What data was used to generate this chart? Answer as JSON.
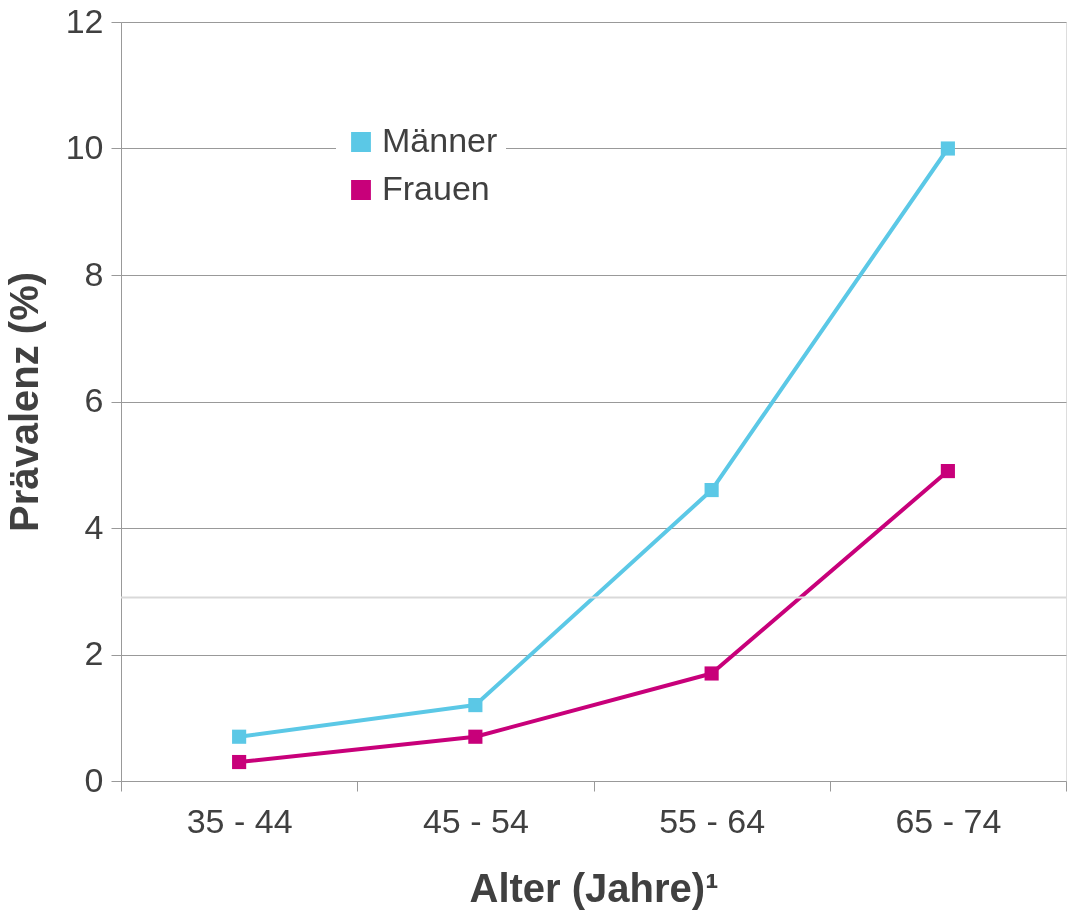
{
  "chart_data": {
    "type": "line",
    "xlabel": "Alter (Jahre)¹",
    "ylabel": "Prävalenz (%)",
    "categories": [
      "35 - 44",
      "45 - 54",
      "55 - 64",
      "65 - 74"
    ],
    "series": [
      {
        "name": "Männer",
        "color": "#5bc8e6",
        "values": [
          0.7,
          1.2,
          4.6,
          10.0
        ]
      },
      {
        "name": "Frauen",
        "color": "#c8007a",
        "values": [
          0.3,
          0.7,
          1.7,
          4.9
        ]
      }
    ],
    "ylim": [
      0,
      12
    ],
    "yticks": [
      0,
      2,
      4,
      6,
      8,
      10,
      12
    ],
    "grid": "y",
    "legend": "top left",
    "marker": "square",
    "line_style": "solid",
    "ref_lines": [
      {
        "axis": "y",
        "value": 2.9,
        "color": "#d9d9d9"
      }
    ]
  }
}
